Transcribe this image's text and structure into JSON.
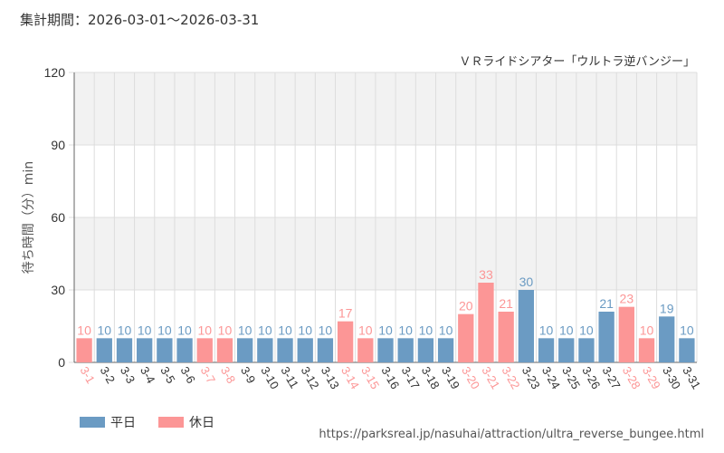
{
  "period": "集計期間：2026-03-01～2026-03-31",
  "source_url": "https://parksreal.jp/nasuhai/attraction/ultra_reverse_bungee.html",
  "colors": {
    "weekday": "#6b9bc3",
    "holiday": "#fc9696",
    "plot_bg_band": "#f2f2f2",
    "grid": "#dddddd"
  },
  "legend": [
    {
      "label": "平日",
      "type": "weekday"
    },
    {
      "label": "休日",
      "type": "holiday"
    }
  ],
  "chart_data": {
    "type": "bar",
    "title": "ＶＲライドシアター「ウルトラ逆バンジー」",
    "ylabel": "待ち時間（分）min",
    "xlabel": "",
    "ylim": [
      0,
      120
    ],
    "yticks": [
      0,
      30,
      60,
      90,
      120
    ],
    "grid": true,
    "legend_position": "bottom-left",
    "categories": [
      "3-1",
      "3-2",
      "3-3",
      "3-4",
      "3-5",
      "3-6",
      "3-7",
      "3-8",
      "3-9",
      "3-10",
      "3-11",
      "3-12",
      "3-13",
      "3-14",
      "3-15",
      "3-16",
      "3-17",
      "3-18",
      "3-19",
      "3-20",
      "3-21",
      "3-22",
      "3-23",
      "3-24",
      "3-25",
      "3-26",
      "3-27",
      "3-28",
      "3-29",
      "3-30",
      "3-31"
    ],
    "values": [
      10,
      10,
      10,
      10,
      10,
      10,
      10,
      10,
      10,
      10,
      10,
      10,
      10,
      17,
      10,
      10,
      10,
      10,
      10,
      20,
      33,
      21,
      30,
      10,
      10,
      10,
      21,
      23,
      10,
      19,
      10
    ],
    "day_types": [
      "holiday",
      "weekday",
      "weekday",
      "weekday",
      "weekday",
      "weekday",
      "holiday",
      "holiday",
      "weekday",
      "weekday",
      "weekday",
      "weekday",
      "weekday",
      "holiday",
      "holiday",
      "weekday",
      "weekday",
      "weekday",
      "weekday",
      "holiday",
      "holiday",
      "holiday",
      "weekday",
      "weekday",
      "weekday",
      "weekday",
      "weekday",
      "holiday",
      "holiday",
      "weekday",
      "weekday"
    ]
  }
}
